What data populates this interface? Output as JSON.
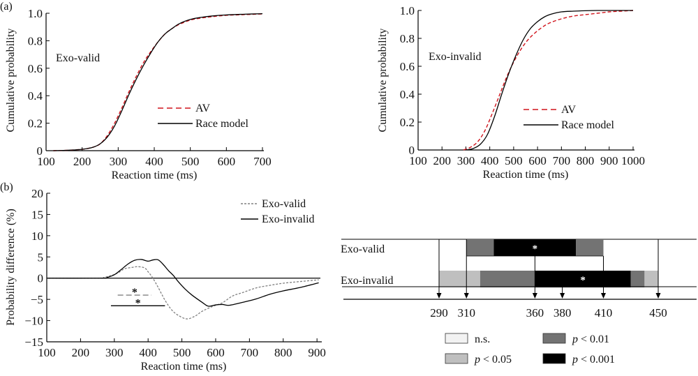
{
  "panel_labels": {
    "a": "(a)",
    "b": "(b)"
  },
  "colors": {
    "av": "#d0141c",
    "race": "#000000",
    "exo_valid": "#808080",
    "exo_invalid": "#000000",
    "ns": "#f2f2f2",
    "p05": "#bfbfbf",
    "p01": "#737373",
    "p001": "#000000"
  },
  "chart_data": [
    {
      "id": "cdf-exo-valid",
      "type": "line",
      "title": "",
      "annotation": "Exo-valid",
      "xlabel": "Reaction time (ms)",
      "ylabel": "Cumulative probability",
      "xlim": [
        100,
        700
      ],
      "ylim": [
        0,
        1.0
      ],
      "xticks": [
        100,
        200,
        300,
        400,
        500,
        600,
        700
      ],
      "yticks": [
        0,
        0.2,
        0.4,
        0.6,
        0.8,
        1.0
      ],
      "ytick_labels": [
        "0",
        "0.2",
        "0.4",
        "0.6",
        "0.8",
        "1.0"
      ],
      "legend": {
        "position": "lower-right",
        "entries": [
          "AV",
          "Race model"
        ]
      },
      "series": [
        {
          "name": "AV",
          "style": "dashed",
          "color_key": "av",
          "x": [
            120,
            160,
            200,
            230,
            250,
            270,
            290,
            310,
            330,
            350,
            370,
            390,
            410,
            430,
            450,
            470,
            500,
            530,
            560,
            600,
            650,
            700
          ],
          "y": [
            0,
            0.003,
            0.01,
            0.025,
            0.05,
            0.11,
            0.2,
            0.31,
            0.43,
            0.54,
            0.64,
            0.72,
            0.79,
            0.85,
            0.89,
            0.92,
            0.95,
            0.965,
            0.975,
            0.985,
            0.99,
            0.995
          ]
        },
        {
          "name": "Race model",
          "style": "solid",
          "color_key": "race",
          "x": [
            120,
            160,
            200,
            230,
            250,
            270,
            290,
            310,
            330,
            350,
            370,
            390,
            410,
            430,
            450,
            470,
            500,
            530,
            560,
            600,
            650,
            700
          ],
          "y": [
            0,
            0.003,
            0.01,
            0.025,
            0.05,
            0.1,
            0.18,
            0.29,
            0.41,
            0.52,
            0.62,
            0.71,
            0.79,
            0.85,
            0.89,
            0.925,
            0.955,
            0.97,
            0.98,
            0.988,
            0.993,
            0.997
          ]
        }
      ]
    },
    {
      "id": "cdf-exo-invalid",
      "type": "line",
      "title": "",
      "annotation": "Exo-invalid",
      "xlabel": "Reaction time (ms)",
      "ylabel": "Cumulative probability",
      "xlim": [
        100,
        1000
      ],
      "ylim": [
        0,
        1.0
      ],
      "xticks": [
        100,
        200,
        300,
        400,
        500,
        600,
        700,
        800,
        900,
        1000
      ],
      "yticks": [
        0,
        0.2,
        0.4,
        0.6,
        0.8,
        1.0
      ],
      "ytick_labels": [
        "0",
        "0.2",
        "0.4",
        "0.6",
        "0.8",
        "1.0"
      ],
      "legend": {
        "position": "lower-right",
        "entries": [
          "AV",
          "Race model"
        ]
      },
      "series": [
        {
          "name": "AV",
          "style": "dashed",
          "color_key": "av",
          "x": [
            290,
            320,
            350,
            380,
            410,
            440,
            470,
            500,
            530,
            560,
            590,
            620,
            650,
            700,
            750,
            800,
            850,
            900,
            950,
            1000
          ],
          "y": [
            0,
            0.02,
            0.06,
            0.14,
            0.26,
            0.39,
            0.52,
            0.63,
            0.72,
            0.79,
            0.84,
            0.88,
            0.91,
            0.94,
            0.96,
            0.97,
            0.98,
            0.99,
            0.995,
            1.0
          ]
        },
        {
          "name": "Race model",
          "style": "solid",
          "color_key": "race",
          "x": [
            300,
            330,
            360,
            390,
            420,
            450,
            480,
            510,
            540,
            570,
            600,
            630,
            660,
            700,
            750,
            800,
            850,
            900,
            1000
          ],
          "y": [
            0,
            0.01,
            0.04,
            0.11,
            0.24,
            0.4,
            0.55,
            0.68,
            0.79,
            0.87,
            0.92,
            0.955,
            0.975,
            0.99,
            0.995,
            0.998,
            1.0,
            1.0,
            1.0
          ]
        }
      ]
    },
    {
      "id": "probability-difference",
      "type": "line",
      "title": "",
      "xlabel": "Reaction time (ms)",
      "ylabel": "Probability difference (%)",
      "xlim": [
        100,
        910
      ],
      "ylim": [
        -15,
        20
      ],
      "xticks": [
        100,
        200,
        300,
        400,
        500,
        600,
        700,
        800,
        900
      ],
      "yticks": [
        -15,
        -10,
        -5,
        0,
        5,
        10,
        15,
        20
      ],
      "ytick_labels": [
        "−15",
        "−10",
        "−5",
        "0",
        "5",
        "10",
        "15",
        "20"
      ],
      "zero_line": true,
      "legend": {
        "position": "top-right",
        "entries": [
          "Exo-valid",
          "Exo-invalid"
        ]
      },
      "series": [
        {
          "name": "Exo-valid",
          "style": "dashed",
          "color_key": "exo_valid",
          "x": [
            100,
            250,
            270,
            290,
            310,
            330,
            350,
            370,
            390,
            400,
            410,
            420,
            430,
            450,
            470,
            490,
            515,
            540,
            560,
            590,
            620,
            650,
            680,
            720,
            760,
            800,
            850,
            905
          ],
          "y": [
            0,
            0,
            0.2,
            0.6,
            1.2,
            2.2,
            2.5,
            2.7,
            2.4,
            1.5,
            0.5,
            -0.8,
            -2.2,
            -5.2,
            -7.5,
            -8.8,
            -9.6,
            -8.9,
            -7.8,
            -6.7,
            -5.8,
            -4.2,
            -3.4,
            -2.3,
            -1.7,
            -1.2,
            -0.8,
            -0.4
          ]
        },
        {
          "name": "Exo-invalid",
          "style": "solid",
          "color_key": "exo_invalid",
          "x": [
            100,
            260,
            280,
            300,
            320,
            340,
            360,
            380,
            400,
            415,
            430,
            445,
            460,
            475,
            490,
            510,
            530,
            560,
            578,
            600,
            620,
            640,
            680,
            720,
            760,
            800,
            850,
            905
          ],
          "y": [
            0,
            0,
            0.2,
            0.8,
            2.0,
            3.3,
            4.2,
            4.4,
            4.0,
            4.3,
            4.3,
            3.2,
            1.8,
            0.6,
            -0.9,
            -2.6,
            -4.0,
            -5.7,
            -6.6,
            -6.3,
            -6.2,
            -6.4,
            -5.7,
            -4.9,
            -3.8,
            -3.0,
            -2.2,
            -1.1
          ]
        }
      ],
      "significance_bars": [
        {
          "series": "Exo-valid",
          "x_range": [
            310,
            410
          ],
          "y": -4,
          "label": "*"
        },
        {
          "series": "Exo-invalid",
          "x_range": [
            290,
            450
          ],
          "y": -6.5,
          "label": "*"
        }
      ]
    },
    {
      "id": "significance-timeline",
      "type": "table",
      "row_labels": [
        "Exo-valid",
        "Exo-invalid"
      ],
      "xlim": [
        208,
        484
      ],
      "rows": [
        {
          "name": "Exo-valid",
          "segments": [
            {
              "from": 310,
              "to": 330,
              "level": "p01"
            },
            {
              "from": 330,
              "to": 390,
              "level": "p001",
              "label": "*"
            },
            {
              "from": 390,
              "to": 410,
              "level": "p01"
            }
          ]
        },
        {
          "name": "Exo-invalid",
          "segments": [
            {
              "from": 290,
              "to": 320,
              "level": "p05"
            },
            {
              "from": 320,
              "to": 360,
              "level": "p01"
            },
            {
              "from": 360,
              "to": 430,
              "level": "p001",
              "label": "*"
            },
            {
              "from": 430,
              "to": 440,
              "level": "p01"
            },
            {
              "from": 440,
              "to": 450,
              "level": "p05"
            }
          ]
        }
      ],
      "markers": [
        290,
        310,
        360,
        380,
        410,
        450
      ],
      "marker_labels": [
        "290",
        "310",
        "360",
        "380",
        "410",
        "450"
      ],
      "legend": [
        {
          "level": "ns",
          "label": "n.s.",
          "italic_p": false
        },
        {
          "level": "p01",
          "label": "p < 0.01",
          "italic_p": true
        },
        {
          "level": "p05",
          "label": "p < 0.05",
          "italic_p": true
        },
        {
          "level": "p001",
          "label": "p < 0.001",
          "italic_p": true
        }
      ]
    }
  ]
}
